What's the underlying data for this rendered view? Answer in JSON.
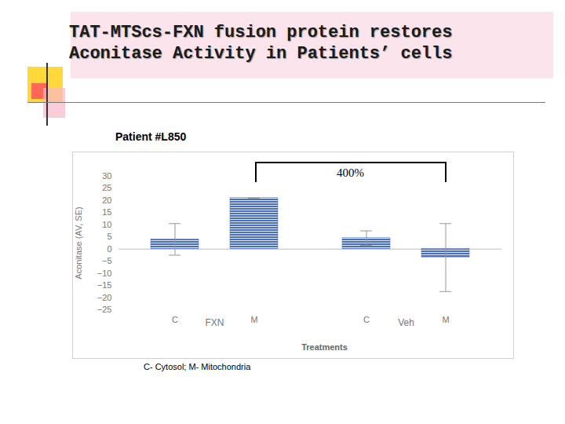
{
  "slide": {
    "title": "TAT-MTScs-FXN fusion protein restores Aconitase Activity in Patients’ cells"
  },
  "chart_data": {
    "type": "bar",
    "title": "Patient #L850",
    "categories": [
      "C",
      "M",
      "C",
      "M"
    ],
    "groups": [
      "FXN",
      "FXN",
      "Veh",
      "Veh"
    ],
    "values": [
      4,
      21,
      4.5,
      -3.5
    ],
    "errors": [
      6.5,
      0,
      3,
      14
    ],
    "color": "#4a6fc0",
    "ylim": [
      -25,
      30
    ],
    "yticks": [
      -25,
      -20,
      -15,
      -10,
      -5,
      0,
      5,
      10,
      15,
      20,
      25,
      30
    ],
    "y_label": "Aconitase (AV, SE)",
    "x_label": "Treatments",
    "grid": false,
    "annotation": {
      "text": "400%",
      "from": 1,
      "to": 3
    },
    "caption": "C- Cytosol; M- Mitochondria"
  }
}
